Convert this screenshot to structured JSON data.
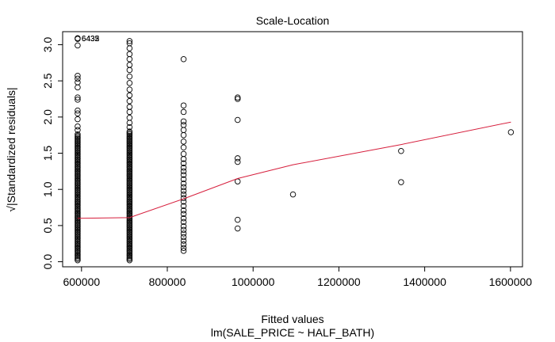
{
  "chart_data": {
    "type": "scatter",
    "title": "Scale-Location",
    "xlabel": "Fitted values",
    "xlabel2": "lm(SALE_PRICE ~ HALF_BATH)",
    "ylabel": "√|Standardized residuals|",
    "xlim": [
      556000,
      1628000
    ],
    "ylim": [
      -0.07,
      3.18
    ],
    "x_ticks": [
      600000,
      800000,
      1000000,
      1200000,
      1400000,
      1600000
    ],
    "y_ticks": [
      0.0,
      0.5,
      1.0,
      1.5,
      2.0,
      2.5,
      3.0
    ],
    "x_tick_labels": [
      "600000",
      "800000",
      "1000000",
      "1200000",
      "1400000",
      "1600000"
    ],
    "y_tick_labels": [
      "0.0",
      "0.5",
      "1.0",
      "1.5",
      "2.0",
      "2.5",
      "3.0"
    ],
    "point_color": "#000000",
    "smooth_color": "#d61e3c",
    "points": [
      {
        "x": 591000,
        "y": 3.09
      },
      {
        "x": 591000,
        "y": 3.08
      },
      {
        "x": 591000,
        "y": 2.99
      },
      {
        "x": 591000,
        "y": 2.57
      },
      {
        "x": 591000,
        "y": 2.53
      },
      {
        "x": 591000,
        "y": 2.48
      },
      {
        "x": 591000,
        "y": 2.41
      },
      {
        "x": 591000,
        "y": 2.27
      },
      {
        "x": 591000,
        "y": 2.24
      },
      {
        "x": 591000,
        "y": 2.09
      },
      {
        "x": 591000,
        "y": 2.05
      },
      {
        "x": 591000,
        "y": 1.97
      },
      {
        "x": 591000,
        "y": 1.87
      },
      {
        "x": 591000,
        "y": 1.82
      },
      {
        "x": 591000,
        "y": 1.76
      },
      {
        "x": 712000,
        "y": 3.05
      },
      {
        "x": 712000,
        "y": 3.02
      },
      {
        "x": 712000,
        "y": 2.95
      },
      {
        "x": 712000,
        "y": 2.87
      },
      {
        "x": 712000,
        "y": 2.8
      },
      {
        "x": 712000,
        "y": 2.72
      },
      {
        "x": 712000,
        "y": 2.65
      },
      {
        "x": 712000,
        "y": 2.56
      },
      {
        "x": 712000,
        "y": 2.47
      },
      {
        "x": 712000,
        "y": 2.38
      },
      {
        "x": 712000,
        "y": 2.3
      },
      {
        "x": 712000,
        "y": 2.22
      },
      {
        "x": 712000,
        "y": 2.14
      },
      {
        "x": 712000,
        "y": 2.07
      },
      {
        "x": 712000,
        "y": 1.99
      },
      {
        "x": 712000,
        "y": 1.92
      },
      {
        "x": 712000,
        "y": 1.86
      },
      {
        "x": 712000,
        "y": 1.8
      },
      {
        "x": 838000,
        "y": 2.8
      },
      {
        "x": 838000,
        "y": 2.16
      },
      {
        "x": 838000,
        "y": 2.07
      },
      {
        "x": 838000,
        "y": 1.94
      },
      {
        "x": 838000,
        "y": 1.89
      },
      {
        "x": 838000,
        "y": 1.82
      },
      {
        "x": 838000,
        "y": 1.75
      },
      {
        "x": 838000,
        "y": 1.66
      },
      {
        "x": 838000,
        "y": 1.58
      },
      {
        "x": 838000,
        "y": 1.49
      },
      {
        "x": 838000,
        "y": 1.42
      },
      {
        "x": 838000,
        "y": 1.36
      },
      {
        "x": 838000,
        "y": 1.3
      },
      {
        "x": 838000,
        "y": 1.25
      },
      {
        "x": 838000,
        "y": 1.2
      },
      {
        "x": 838000,
        "y": 1.14
      },
      {
        "x": 838000,
        "y": 1.08
      },
      {
        "x": 838000,
        "y": 1.03
      },
      {
        "x": 838000,
        "y": 0.98
      },
      {
        "x": 838000,
        "y": 0.93
      },
      {
        "x": 838000,
        "y": 0.88
      },
      {
        "x": 838000,
        "y": 0.83
      },
      {
        "x": 838000,
        "y": 0.77
      },
      {
        "x": 838000,
        "y": 0.71
      },
      {
        "x": 838000,
        "y": 0.66
      },
      {
        "x": 838000,
        "y": 0.6
      },
      {
        "x": 838000,
        "y": 0.55
      },
      {
        "x": 838000,
        "y": 0.49
      },
      {
        "x": 838000,
        "y": 0.44
      },
      {
        "x": 838000,
        "y": 0.39
      },
      {
        "x": 838000,
        "y": 0.34
      },
      {
        "x": 838000,
        "y": 0.29
      },
      {
        "x": 838000,
        "y": 0.24
      },
      {
        "x": 838000,
        "y": 0.19
      },
      {
        "x": 838000,
        "y": 0.15
      },
      {
        "x": 964000,
        "y": 2.27
      },
      {
        "x": 964000,
        "y": 2.25
      },
      {
        "x": 964000,
        "y": 1.96
      },
      {
        "x": 964000,
        "y": 1.43
      },
      {
        "x": 964000,
        "y": 1.38
      },
      {
        "x": 964000,
        "y": 1.11
      },
      {
        "x": 964000,
        "y": 0.58
      },
      {
        "x": 964000,
        "y": 0.46
      },
      {
        "x": 1093000,
        "y": 0.93
      },
      {
        "x": 1345000,
        "y": 1.53
      },
      {
        "x": 1345000,
        "y": 1.1
      },
      {
        "x": 1601000,
        "y": 1.79
      }
    ],
    "columns": [
      {
        "x": 591000,
        "y_min": 0.02,
        "y_max": 1.75,
        "step": 0.02
      },
      {
        "x": 712000,
        "y_min": 0.02,
        "y_max": 1.78,
        "step": 0.02
      }
    ],
    "smooth": [
      {
        "x": 591000,
        "y": 0.6
      },
      {
        "x": 712000,
        "y": 0.61
      },
      {
        "x": 838000,
        "y": 0.87
      },
      {
        "x": 964000,
        "y": 1.15
      },
      {
        "x": 1093000,
        "y": 1.34
      },
      {
        "x": 1345000,
        "y": 1.62
      },
      {
        "x": 1601000,
        "y": 1.93
      }
    ],
    "annotations": [
      {
        "text": "6432",
        "x": 591000,
        "y": 3.09
      },
      {
        "text": "6433",
        "x": 591000,
        "y": 3.09
      },
      {
        "text": "6435",
        "x": 591000,
        "y": 3.09
      }
    ]
  }
}
